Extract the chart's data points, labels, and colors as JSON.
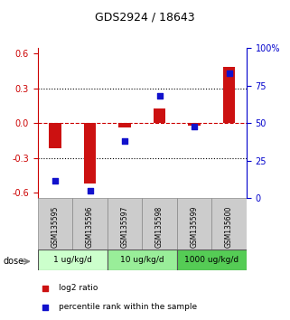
{
  "title": "GDS2924 / 18643",
  "samples": [
    "GSM135595",
    "GSM135596",
    "GSM135597",
    "GSM135598",
    "GSM135599",
    "GSM135600"
  ],
  "log2_ratio": [
    -0.22,
    -0.52,
    -0.04,
    0.13,
    -0.02,
    0.49
  ],
  "percentile_rank": [
    12,
    5,
    38,
    68,
    48,
    83
  ],
  "dose_groups": [
    {
      "label": "1 ug/kg/d",
      "samples": [
        0,
        1
      ],
      "color": "#ccffcc"
    },
    {
      "label": "10 ug/kg/d",
      "samples": [
        2,
        3
      ],
      "color": "#99ee99"
    },
    {
      "label": "1000 ug/kg/d",
      "samples": [
        4,
        5
      ],
      "color": "#55cc55"
    }
  ],
  "ylim_left": [
    -0.65,
    0.65
  ],
  "ylim_right": [
    0,
    100
  ],
  "bar_color_red": "#cc1111",
  "bar_color_blue": "#1111cc",
  "dotted_line_color": "#000000",
  "zero_line_color": "#cc0000",
  "axis_left_color": "#cc0000",
  "axis_right_color": "#0000cc",
  "bg_color": "#ffffff",
  "sample_box_color": "#cccccc",
  "yticks_left": [
    -0.6,
    -0.3,
    0.0,
    0.3,
    0.6
  ],
  "yticks_right": [
    0,
    25,
    50,
    75,
    100
  ],
  "grid_lines": [
    -0.3,
    0.0,
    0.3
  ],
  "legend_red_label": "log2 ratio",
  "legend_blue_label": "percentile rank within the sample",
  "dose_label": "dose",
  "percentile_scale": 50,
  "bar_width": 0.35
}
